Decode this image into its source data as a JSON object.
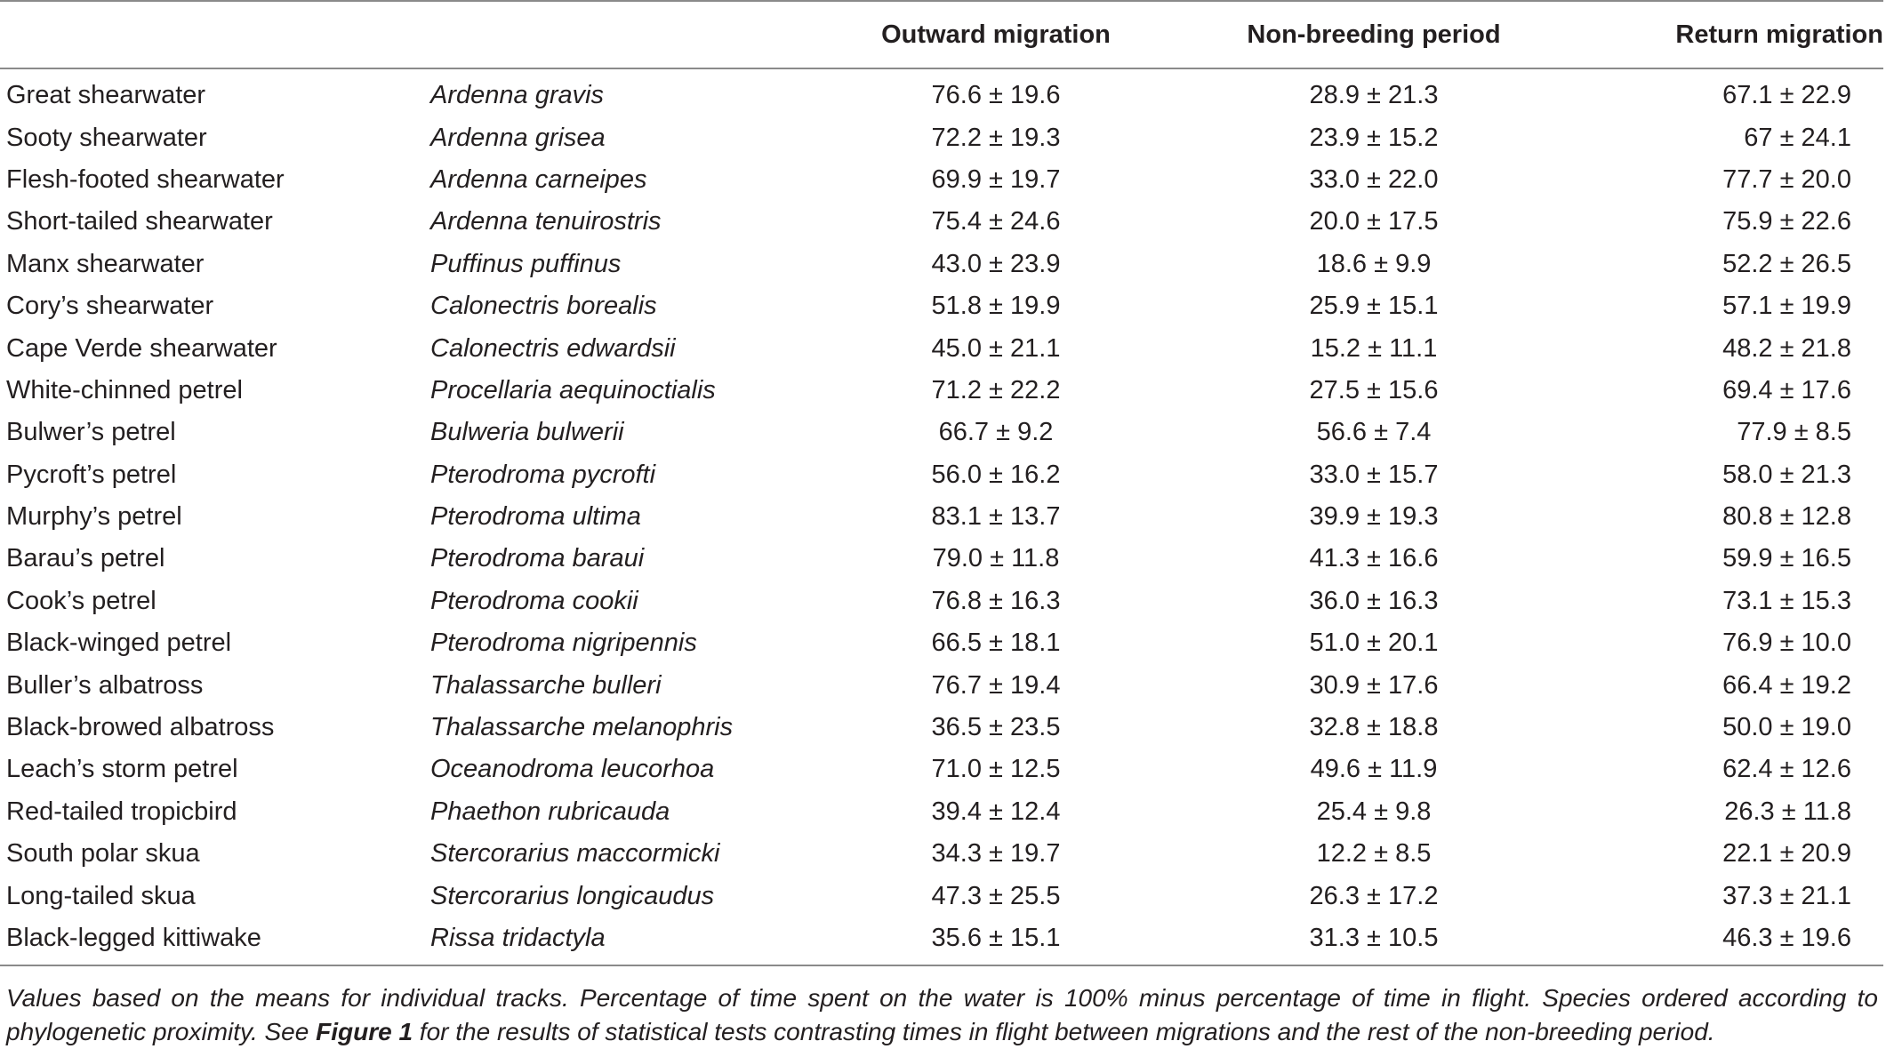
{
  "table": {
    "headers": {
      "common_name": "",
      "scientific_name": "",
      "outward": "Outward migration",
      "non_breeding": "Non-breeding period",
      "return": "Return migration"
    },
    "rows": [
      {
        "common": "Great shearwater",
        "scientific": "Ardenna gravis",
        "outward": "76.6 ± 19.6",
        "non_breeding": "28.9 ± 21.3",
        "return": "67.1 ± 22.9"
      },
      {
        "common": "Sooty shearwater",
        "scientific": "Ardenna grisea",
        "outward": "72.2 ± 19.3",
        "non_breeding": "23.9 ± 15.2",
        "return": "67 ± 24.1"
      },
      {
        "common": "Flesh-footed shearwater",
        "scientific": "Ardenna carneipes",
        "outward": "69.9 ± 19.7",
        "non_breeding": "33.0 ± 22.0",
        "return": "77.7 ± 20.0"
      },
      {
        "common": "Short-tailed shearwater",
        "scientific": "Ardenna tenuirostris",
        "outward": "75.4 ± 24.6",
        "non_breeding": "20.0 ± 17.5",
        "return": "75.9 ± 22.6"
      },
      {
        "common": "Manx shearwater",
        "scientific": "Puffinus puffinus",
        "outward": "43.0 ± 23.9",
        "non_breeding": "18.6 ± 9.9",
        "return": "52.2 ± 26.5"
      },
      {
        "common": "Cory’s shearwater",
        "scientific": "Calonectris borealis",
        "outward": "51.8 ± 19.9",
        "non_breeding": "25.9 ± 15.1",
        "return": "57.1 ± 19.9"
      },
      {
        "common": "Cape Verde shearwater",
        "scientific": "Calonectris edwardsii",
        "outward": "45.0 ± 21.1",
        "non_breeding": "15.2 ± 11.1",
        "return": "48.2 ± 21.8"
      },
      {
        "common": "White-chinned petrel",
        "scientific": "Procellaria aequinoctialis",
        "outward": "71.2 ± 22.2",
        "non_breeding": "27.5 ± 15.6",
        "return": "69.4 ± 17.6"
      },
      {
        "common": "Bulwer’s petrel",
        "scientific": "Bulweria bulwerii",
        "outward": "66.7 ± 9.2",
        "non_breeding": "56.6 ± 7.4",
        "return": "77.9 ± 8.5"
      },
      {
        "common": "Pycroft’s petrel",
        "scientific": "Pterodroma pycrofti",
        "outward": "56.0 ± 16.2",
        "non_breeding": "33.0 ± 15.7",
        "return": "58.0 ± 21.3"
      },
      {
        "common": "Murphy’s petrel",
        "scientific": "Pterodroma ultima",
        "outward": "83.1 ± 13.7",
        "non_breeding": "39.9 ± 19.3",
        "return": "80.8 ± 12.8"
      },
      {
        "common": "Barau’s petrel",
        "scientific": "Pterodroma baraui",
        "outward": "79.0 ± 11.8",
        "non_breeding": "41.3 ± 16.6",
        "return": "59.9 ± 16.5"
      },
      {
        "common": "Cook’s petrel",
        "scientific": "Pterodroma cookii",
        "outward": "76.8 ± 16.3",
        "non_breeding": "36.0 ± 16.3",
        "return": "73.1 ± 15.3"
      },
      {
        "common": "Black-winged petrel",
        "scientific": "Pterodroma nigripennis",
        "outward": "66.5 ± 18.1",
        "non_breeding": "51.0 ± 20.1",
        "return": "76.9 ± 10.0"
      },
      {
        "common": "Buller’s albatross",
        "scientific": "Thalassarche bulleri",
        "outward": "76.7 ± 19.4",
        "non_breeding": "30.9 ± 17.6",
        "return": "66.4 ± 19.2"
      },
      {
        "common": "Black-browed albatross",
        "scientific": "Thalassarche melanophris",
        "outward": "36.5 ± 23.5",
        "non_breeding": "32.8 ± 18.8",
        "return": "50.0 ± 19.0"
      },
      {
        "common": "Leach’s storm petrel",
        "scientific": "Oceanodroma leucorhoa",
        "outward": "71.0 ± 12.5",
        "non_breeding": "49.6 ± 11.9",
        "return": "62.4 ± 12.6"
      },
      {
        "common": "Red-tailed tropicbird",
        "scientific": "Phaethon rubricauda",
        "outward": "39.4 ± 12.4",
        "non_breeding": "25.4 ± 9.8",
        "return": "26.3 ± 11.8"
      },
      {
        "common": "South polar skua",
        "scientific": "Stercorarius maccormicki",
        "outward": "34.3 ± 19.7",
        "non_breeding": "12.2 ± 8.5",
        "return": "22.1 ± 20.9"
      },
      {
        "common": "Long-tailed skua",
        "scientific": "Stercorarius longicaudus",
        "outward": "47.3 ± 25.5",
        "non_breeding": "26.3 ± 17.2",
        "return": "37.3 ± 21.1"
      },
      {
        "common": "Black-legged kittiwake",
        "scientific": "Rissa tridactyla",
        "outward": "35.6 ± 15.1",
        "non_breeding": "31.3 ± 10.5",
        "return": "46.3 ± 19.6"
      }
    ]
  },
  "footnote": {
    "part1": "Values based on the means for individual tracks. Percentage of time spent on the water is 100% minus percentage of time in flight. Species ordered according to phylogenetic proximity. See ",
    "figure_ref": "Figure 1",
    "part2": " for the results of statistical tests contrasting times in flight between migrations and the rest of the non-breeding period."
  }
}
